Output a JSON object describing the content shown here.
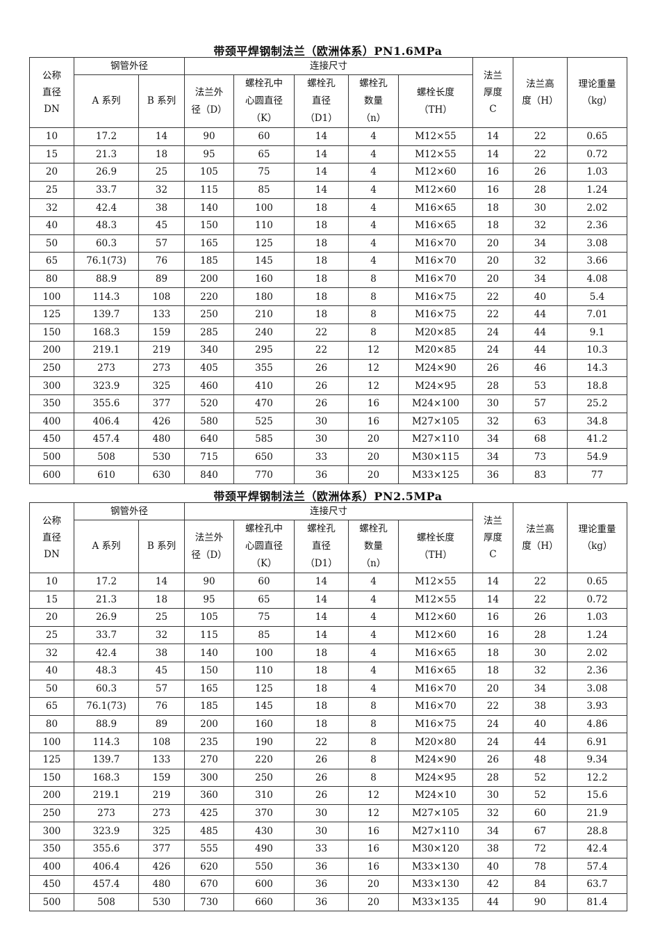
{
  "headers": {
    "dn": "公称\n直径\nDN",
    "pipe_od": "钢管外径",
    "a_series": "A 系列",
    "b_series": "B 系列",
    "connection": "连接尺寸",
    "flange_od": "法兰外\n径（D）",
    "bolt_circle": "螺栓孔中\n心圆直径\n（K）",
    "bolt_hole_dia": "螺栓孔\n直径\n（D1）",
    "bolt_count": "螺栓孔\n数量\n（n）",
    "bolt_length": "螺栓长度\n（TH）",
    "thickness": "法兰\n厚度\nC",
    "height": "法兰高\n度（H）",
    "weight": "理论重量\n（kg）"
  },
  "tables": [
    {
      "title": "带颈平焊钢制法兰（欧洲体系）PN1.6MPa",
      "rows": [
        [
          "10",
          "17.2",
          "14",
          "90",
          "60",
          "14",
          "4",
          "M12×55",
          "14",
          "22",
          "0.65"
        ],
        [
          "15",
          "21.3",
          "18",
          "95",
          "65",
          "14",
          "4",
          "M12×55",
          "14",
          "22",
          "0.72"
        ],
        [
          "20",
          "26.9",
          "25",
          "105",
          "75",
          "14",
          "4",
          "M12×60",
          "16",
          "26",
          "1.03"
        ],
        [
          "25",
          "33.7",
          "32",
          "115",
          "85",
          "14",
          "4",
          "M12×60",
          "16",
          "28",
          "1.24"
        ],
        [
          "32",
          "42.4",
          "38",
          "140",
          "100",
          "18",
          "4",
          "M16×65",
          "18",
          "30",
          "2.02"
        ],
        [
          "40",
          "48.3",
          "45",
          "150",
          "110",
          "18",
          "4",
          "M16×65",
          "18",
          "32",
          "2.36"
        ],
        [
          "50",
          "60.3",
          "57",
          "165",
          "125",
          "18",
          "4",
          "M16×70",
          "20",
          "34",
          "3.08"
        ],
        [
          "65",
          "76.1(73)",
          "76",
          "185",
          "145",
          "18",
          "4",
          "M16×70",
          "20",
          "32",
          "3.66"
        ],
        [
          "80",
          "88.9",
          "89",
          "200",
          "160",
          "18",
          "8",
          "M16×70",
          "20",
          "34",
          "4.08"
        ],
        [
          "100",
          "114.3",
          "108",
          "220",
          "180",
          "18",
          "8",
          "M16×75",
          "22",
          "40",
          "5.4"
        ],
        [
          "125",
          "139.7",
          "133",
          "250",
          "210",
          "18",
          "8",
          "M16×75",
          "22",
          "44",
          "7.01"
        ],
        [
          "150",
          "168.3",
          "159",
          "285",
          "240",
          "22",
          "8",
          "M20×85",
          "24",
          "44",
          "9.1"
        ],
        [
          "200",
          "219.1",
          "219",
          "340",
          "295",
          "22",
          "12",
          "M20×85",
          "24",
          "44",
          "10.3"
        ],
        [
          "250",
          "273",
          "273",
          "405",
          "355",
          "26",
          "12",
          "M24×90",
          "26",
          "46",
          "14.3"
        ],
        [
          "300",
          "323.9",
          "325",
          "460",
          "410",
          "26",
          "12",
          "M24×95",
          "28",
          "53",
          "18.8"
        ],
        [
          "350",
          "355.6",
          "377",
          "520",
          "470",
          "26",
          "16",
          "M24×100",
          "30",
          "57",
          "25.2"
        ],
        [
          "400",
          "406.4",
          "426",
          "580",
          "525",
          "30",
          "16",
          "M27×105",
          "32",
          "63",
          "34.8"
        ],
        [
          "450",
          "457.4",
          "480",
          "640",
          "585",
          "30",
          "20",
          "M27×110",
          "34",
          "68",
          "41.2"
        ],
        [
          "500",
          "508",
          "530",
          "715",
          "650",
          "33",
          "20",
          "M30×115",
          "34",
          "73",
          "54.9"
        ],
        [
          "600",
          "610",
          "630",
          "840",
          "770",
          "36",
          "20",
          "M33×125",
          "36",
          "83",
          "77"
        ]
      ]
    },
    {
      "title": "带颈平焊钢制法兰（欧洲体系）PN2.5MPa",
      "rows": [
        [
          "10",
          "17.2",
          "14",
          "90",
          "60",
          "14",
          "4",
          "M12×55",
          "14",
          "22",
          "0.65"
        ],
        [
          "15",
          "21.3",
          "18",
          "95",
          "65",
          "14",
          "4",
          "M12×55",
          "14",
          "22",
          "0.72"
        ],
        [
          "20",
          "26.9",
          "25",
          "105",
          "75",
          "14",
          "4",
          "M12×60",
          "16",
          "26",
          "1.03"
        ],
        [
          "25",
          "33.7",
          "32",
          "115",
          "85",
          "14",
          "4",
          "M12×60",
          "16",
          "28",
          "1.24"
        ],
        [
          "32",
          "42.4",
          "38",
          "140",
          "100",
          "18",
          "4",
          "M16×65",
          "18",
          "30",
          "2.02"
        ],
        [
          "40",
          "48.3",
          "45",
          "150",
          "110",
          "18",
          "4",
          "M16×65",
          "18",
          "32",
          "2.36"
        ],
        [
          "50",
          "60.3",
          "57",
          "165",
          "125",
          "18",
          "4",
          "M16×70",
          "20",
          "34",
          "3.08"
        ],
        [
          "65",
          "76.1(73)",
          "76",
          "185",
          "145",
          "18",
          "8",
          "M16×70",
          "22",
          "38",
          "3.93"
        ],
        [
          "80",
          "88.9",
          "89",
          "200",
          "160",
          "18",
          "8",
          "M16×75",
          "24",
          "40",
          "4.86"
        ],
        [
          "100",
          "114.3",
          "108",
          "235",
          "190",
          "22",
          "8",
          "M20×80",
          "24",
          "44",
          "6.91"
        ],
        [
          "125",
          "139.7",
          "133",
          "270",
          "220",
          "26",
          "8",
          "M24×90",
          "26",
          "48",
          "9.34"
        ],
        [
          "150",
          "168.3",
          "159",
          "300",
          "250",
          "26",
          "8",
          "M24×95",
          "28",
          "52",
          "12.2"
        ],
        [
          "200",
          "219.1",
          "219",
          "360",
          "310",
          "26",
          "12",
          "M24×10",
          "30",
          "52",
          "15.6"
        ],
        [
          "250",
          "273",
          "273",
          "425",
          "370",
          "30",
          "12",
          "M27×105",
          "32",
          "60",
          "21.9"
        ],
        [
          "300",
          "323.9",
          "325",
          "485",
          "430",
          "30",
          "16",
          "M27×110",
          "34",
          "67",
          "28.8"
        ],
        [
          "350",
          "355.6",
          "377",
          "555",
          "490",
          "33",
          "16",
          "M30×120",
          "38",
          "72",
          "42.4"
        ],
        [
          "400",
          "406.4",
          "426",
          "620",
          "550",
          "36",
          "16",
          "M33×130",
          "40",
          "78",
          "57.4"
        ],
        [
          "450",
          "457.4",
          "480",
          "670",
          "600",
          "36",
          "20",
          "M33×130",
          "42",
          "84",
          "63.7"
        ],
        [
          "500",
          "508",
          "530",
          "730",
          "660",
          "36",
          "20",
          "M33×135",
          "44",
          "90",
          "81.4"
        ]
      ]
    }
  ]
}
